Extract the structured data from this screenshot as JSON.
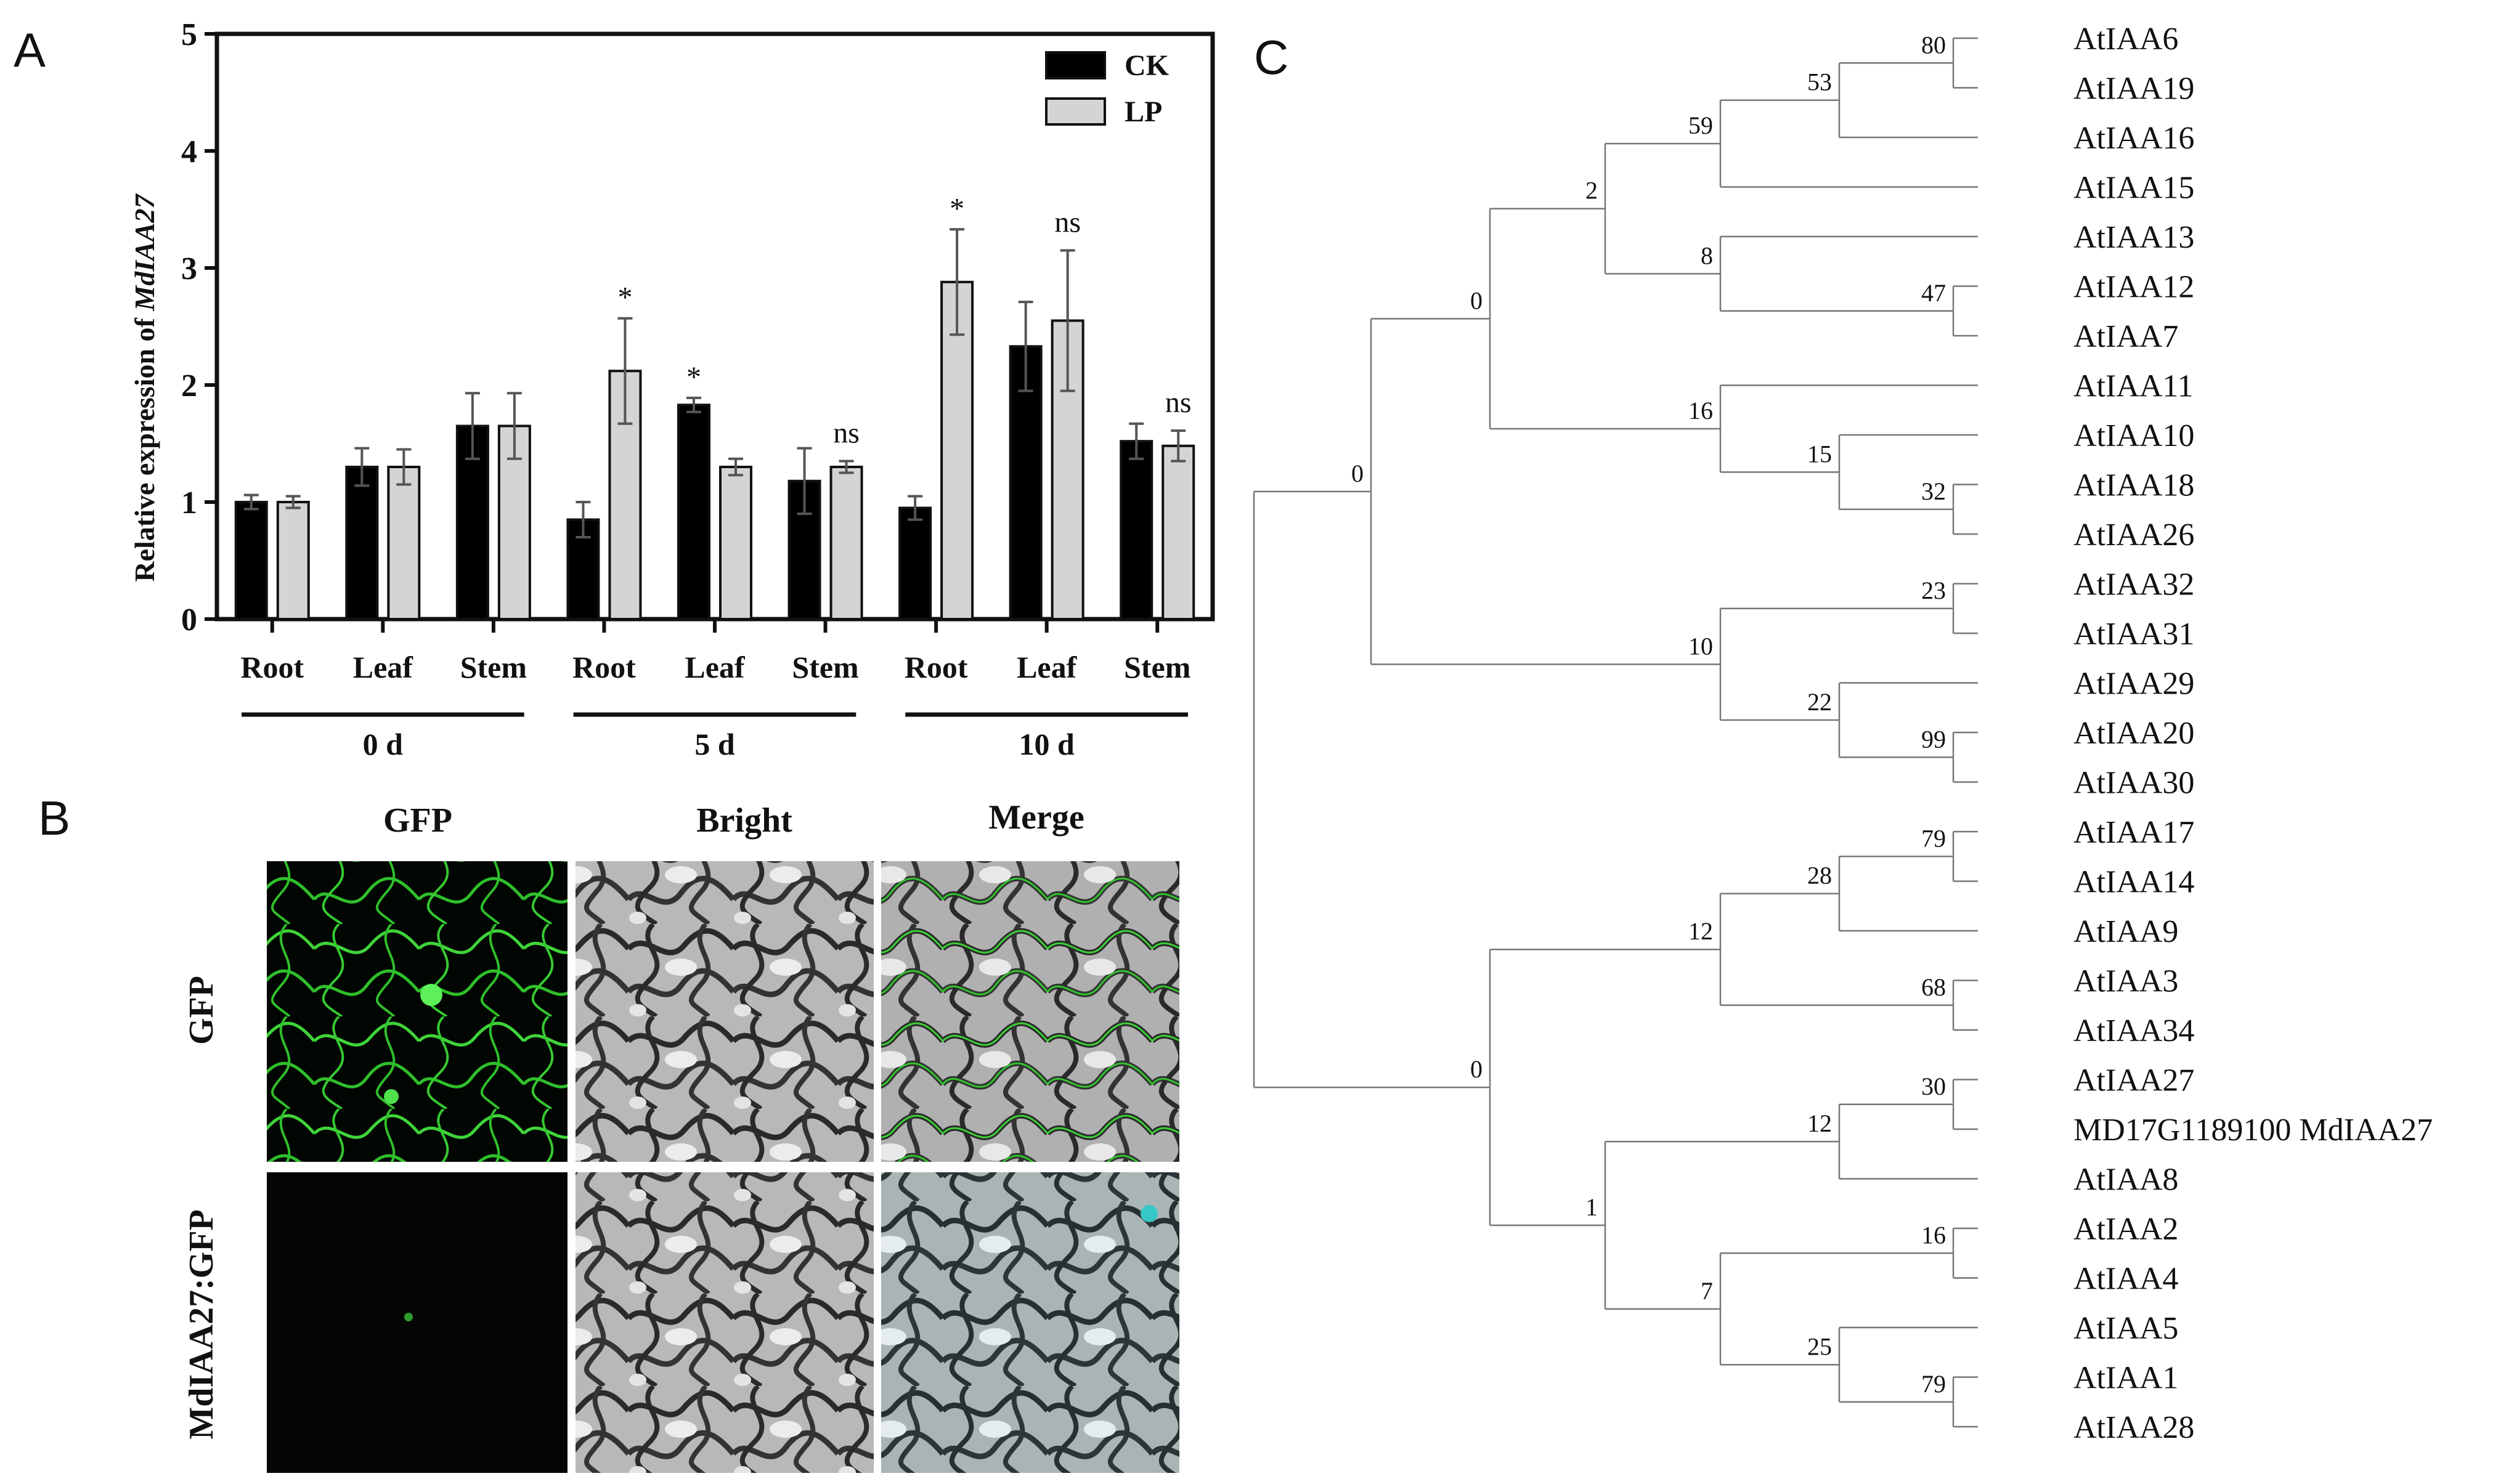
{
  "panels": {
    "a": "A",
    "b": "B",
    "c": "C"
  },
  "chart_data": [
    {
      "type": "bar",
      "ylabel_prefix": "Relative expression of ",
      "ylabel_gene": "MdIAA27",
      "ylim": [
        0,
        5
      ],
      "yticks": [
        "0",
        "1",
        "2",
        "3",
        "4",
        "5"
      ],
      "categories": [
        "Root",
        "Leaf",
        "Stem",
        "Root",
        "Leaf",
        "Stem",
        "Root",
        "Leaf",
        "Stem"
      ],
      "groups": [
        {
          "label": "0 d",
          "start": 0,
          "end": 2
        },
        {
          "label": "5 d",
          "start": 3,
          "end": 5
        },
        {
          "label": "10 d",
          "start": 6,
          "end": 8
        }
      ],
      "series": [
        {
          "name": "CK",
          "color": "#000000",
          "values": [
            1.0,
            1.3,
            1.65,
            0.85,
            1.83,
            1.18,
            0.95,
            2.33,
            1.52
          ],
          "errors": [
            0.06,
            0.16,
            0.28,
            0.15,
            0.06,
            0.28,
            0.1,
            0.38,
            0.15
          ]
        },
        {
          "name": "LP",
          "color": "#d4d4d4",
          "values": [
            1.0,
            1.3,
            1.65,
            2.12,
            1.3,
            1.3,
            2.88,
            2.55,
            1.48
          ],
          "errors": [
            0.05,
            0.15,
            0.28,
            0.45,
            0.07,
            0.05,
            0.45,
            0.6,
            0.13
          ]
        }
      ],
      "annotations": [
        {
          "category": 3,
          "series": 1,
          "text": "*"
        },
        {
          "category": 4,
          "series": 0,
          "text": "*"
        },
        {
          "category": 5,
          "series": 1,
          "text": "ns"
        },
        {
          "category": 6,
          "series": 1,
          "text": "*"
        },
        {
          "category": 7,
          "series": 1,
          "text": "ns"
        },
        {
          "category": 8,
          "series": 1,
          "text": "ns"
        }
      ],
      "legend": {
        "position": "top-right",
        "entries": [
          "CK",
          "LP"
        ]
      },
      "grid": false
    }
  ],
  "micrographs": {
    "columns": [
      "GFP",
      "Bright",
      "Merge"
    ],
    "rows": [
      "GFP",
      "MdIAA27:GFP"
    ]
  },
  "tree": {
    "leaves": [
      "AtIAA6",
      "AtIAA19",
      "AtIAA16",
      "AtIAA15",
      "AtIAA13",
      "AtIAA12",
      "AtIAA7",
      "AtIAA11",
      "AtIAA10",
      "AtIAA18",
      "AtIAA26",
      "AtIAA32",
      "AtIAA31",
      "AtIAA29",
      "AtIAA20",
      "AtIAA30",
      "AtIAA17",
      "AtIAA14",
      "AtIAA9",
      "AtIAA3",
      "AtIAA34",
      "AtIAA27",
      "MD17G1189100 MdIAA27",
      "AtIAA8",
      "AtIAA2",
      "AtIAA4",
      "AtIAA5",
      "AtIAA1",
      "AtIAA28"
    ],
    "bootstrap": [
      "80",
      "53",
      "59",
      "2",
      "8",
      "47",
      "16",
      "15",
      "32",
      "0",
      "23",
      "10",
      "22",
      "99",
      "79",
      "28",
      "12",
      "68",
      "30",
      "12",
      "16",
      "25",
      "79",
      "7",
      "1",
      "0"
    ]
  }
}
